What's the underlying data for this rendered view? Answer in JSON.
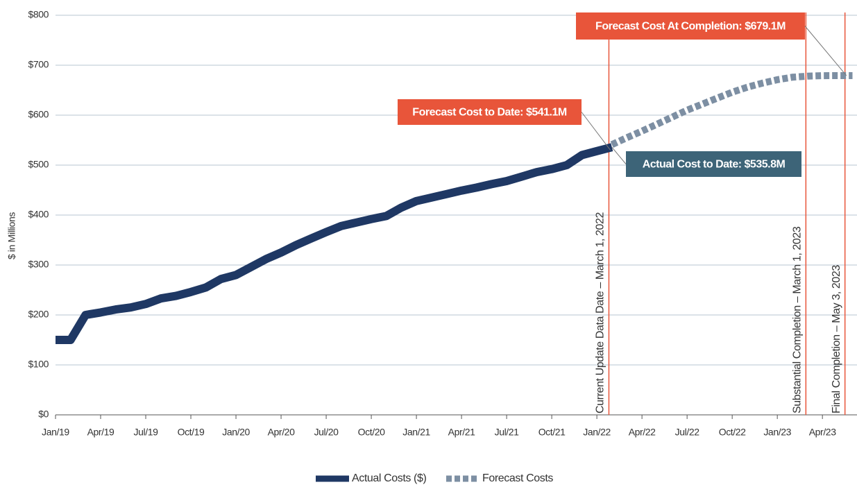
{
  "chart_data": {
    "type": "line",
    "y_label": "$ in Millions",
    "categories": [
      "Jan/19",
      null,
      null,
      "Apr/19",
      null,
      null,
      "Jul/19",
      null,
      null,
      "Oct/19",
      null,
      null,
      "Jan/20",
      null,
      null,
      "Apr/20",
      null,
      null,
      "Jul/20",
      null,
      null,
      "Oct/20",
      null,
      null,
      "Jan/21",
      null,
      null,
      "Apr/21",
      null,
      null,
      "Jul/21",
      null,
      null,
      "Oct/21",
      null,
      null,
      "Jan/22",
      null,
      null,
      "Apr/22",
      null,
      null,
      "Jul/22",
      null,
      null,
      "Oct/22",
      null,
      null,
      "Jan/23",
      null,
      null,
      "Apr/23",
      null,
      null
    ],
    "series": [
      {
        "name": "Actual Costs ($)",
        "color": "#1f3864",
        "style": "solid",
        "values": [
          150,
          150,
          200,
          205,
          211,
          215,
          222,
          233,
          238,
          246,
          255,
          272,
          280,
          296,
          312,
          325,
          340,
          353,
          366,
          378,
          385,
          392,
          398,
          415,
          428,
          435,
          442,
          449,
          455,
          462,
          468,
          477,
          486,
          492,
          500,
          520,
          528,
          535.8,
          null,
          null,
          null,
          null,
          null,
          null,
          null,
          null,
          null,
          null,
          null,
          null,
          null,
          null,
          null,
          null
        ]
      },
      {
        "name": "Forecast Costs",
        "color": "#7d8fa3",
        "style": "dashed",
        "values": [
          null,
          null,
          null,
          null,
          null,
          null,
          null,
          null,
          null,
          null,
          null,
          null,
          null,
          null,
          null,
          null,
          null,
          null,
          null,
          null,
          null,
          null,
          null,
          null,
          null,
          null,
          null,
          null,
          null,
          null,
          null,
          null,
          null,
          null,
          null,
          null,
          null,
          541.1,
          555,
          568,
          582,
          596,
          610,
          622,
          634,
          646,
          656,
          664,
          671,
          676,
          678,
          679,
          679.1,
          679.1
        ]
      }
    ],
    "ylim": [
      0,
      800
    ],
    "yticks": [
      {
        "value": 0,
        "label": "$0"
      },
      {
        "value": 100,
        "label": "$100"
      },
      {
        "value": 200,
        "label": "$200"
      },
      {
        "value": 300,
        "label": "$300"
      },
      {
        "value": 400,
        "label": "$400"
      },
      {
        "value": 500,
        "label": "$500"
      },
      {
        "value": 600,
        "label": "$600"
      },
      {
        "value": 700,
        "label": "$700"
      },
      {
        "value": 800,
        "label": "$800"
      }
    ],
    "grid": true,
    "vlines": [
      {
        "label": "Current Update Data Date – March 1, 2022",
        "at": 36.8,
        "color": "#e8553a"
      },
      {
        "label": "Substantial Completion – March 1, 2023",
        "at": 49.9,
        "color": "#e8553a"
      },
      {
        "label": "Final Completion – May 3, 2023",
        "at": 52.5,
        "color": "#e8553a"
      }
    ],
    "annotations": [
      {
        "text": "Forecast Cost At Completion: $679.1M",
        "color": "#e8553a",
        "value": 679.1
      },
      {
        "text": "Forecast Cost to Date: $541.1M",
        "color": "#e8553a",
        "value": 541.1
      },
      {
        "text": "Actual Cost to Date: $535.8M",
        "color": "#3d6478",
        "value": 535.8
      }
    ],
    "legend": "bottom"
  }
}
